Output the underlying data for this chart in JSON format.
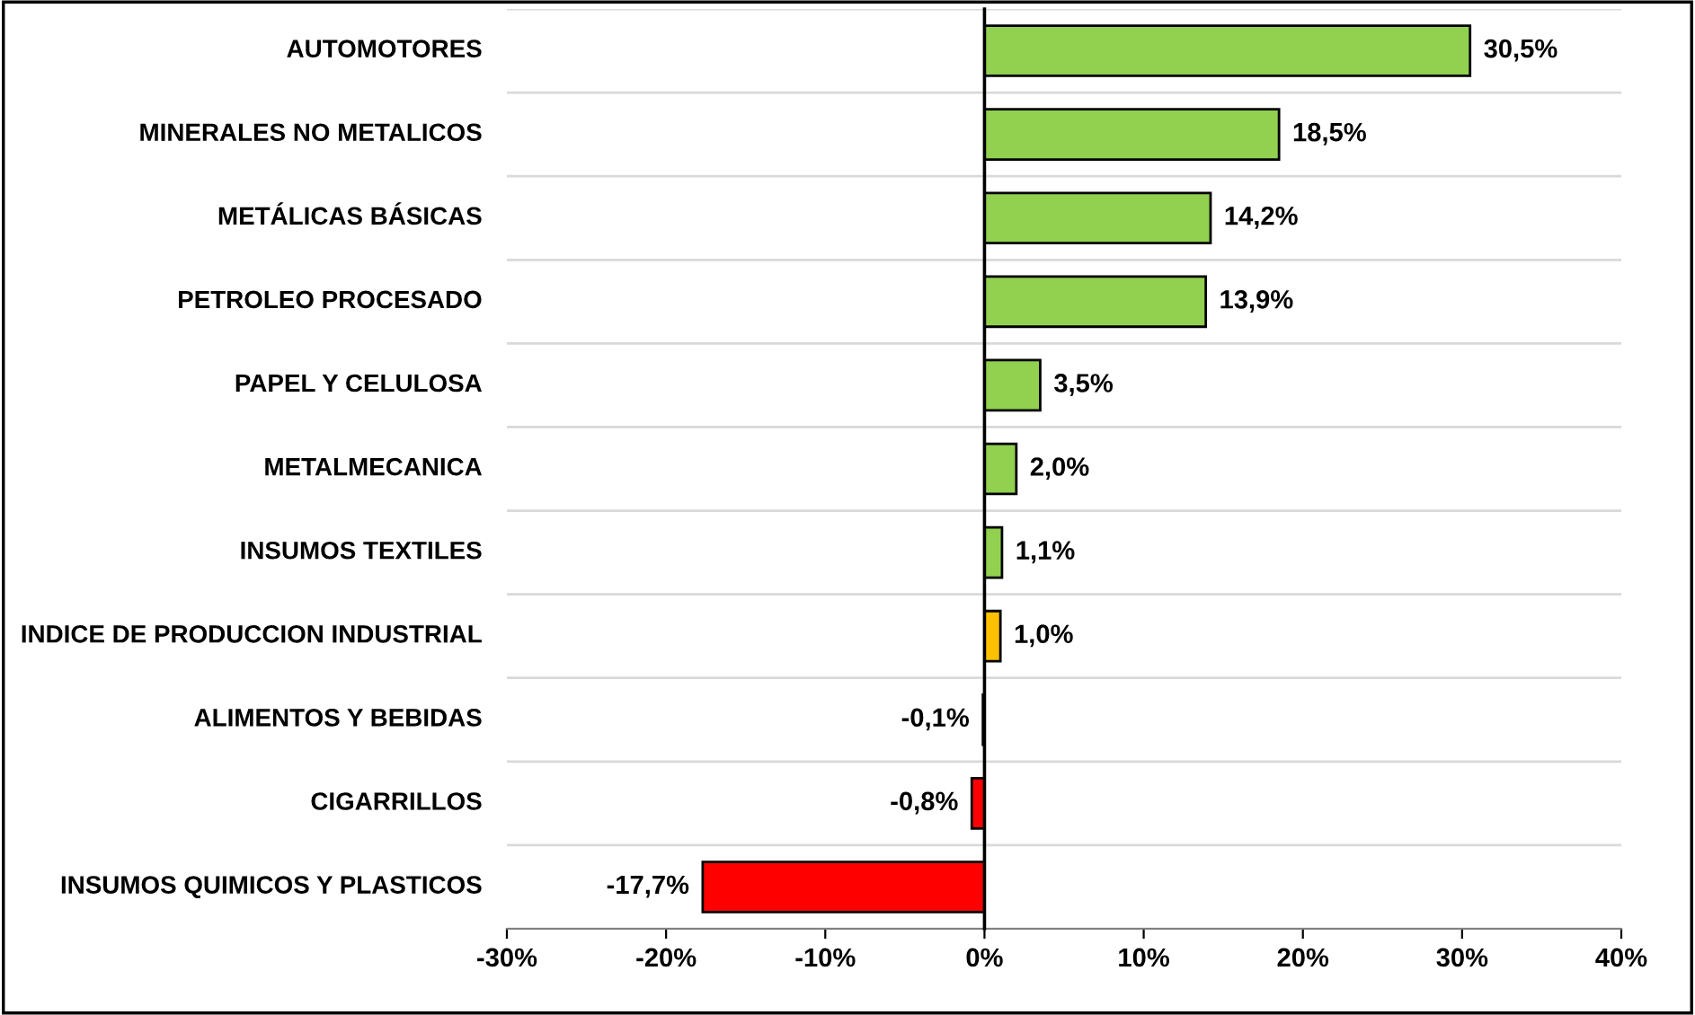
{
  "chart_data": {
    "type": "bar",
    "orientation": "horizontal",
    "categories": [
      "AUTOMOTORES",
      "MINERALES NO METALICOS",
      "METÁLICAS BÁSICAS",
      "PETROLEO PROCESADO",
      "PAPEL Y CELULOSA",
      "METALMECANICA",
      "INSUMOS TEXTILES",
      "INDICE DE PRODUCCION INDUSTRIAL",
      "ALIMENTOS Y BEBIDAS",
      "CIGARRILLOS",
      "INSUMOS QUIMICOS Y PLASTICOS"
    ],
    "values": [
      30.5,
      18.5,
      14.2,
      13.9,
      3.5,
      2.0,
      1.1,
      1.0,
      -0.1,
      -0.8,
      -17.7
    ],
    "value_labels": [
      "30,5%",
      "18,5%",
      "14,2%",
      "13,9%",
      "3,5%",
      "2,0%",
      "1,1%",
      "1,0%",
      "-0,1%",
      "-0,8%",
      "-17,7%"
    ],
    "colors": [
      "#92d050",
      "#92d050",
      "#92d050",
      "#92d050",
      "#92d050",
      "#92d050",
      "#92d050",
      "#ffc000",
      "#ff0000",
      "#ff0000",
      "#ff0000"
    ],
    "xlim": [
      -30,
      40
    ],
    "xticks": [
      {
        "value": -30,
        "label": "-30%"
      },
      {
        "value": -20,
        "label": "-20%"
      },
      {
        "value": -10,
        "label": "-10%"
      },
      {
        "value": 0,
        "label": "0%"
      },
      {
        "value": 10,
        "label": "10%"
      },
      {
        "value": 20,
        "label": "20%"
      },
      {
        "value": 30,
        "label": "30%"
      },
      {
        "value": 40,
        "label": "40%"
      }
    ],
    "grid": "y"
  }
}
